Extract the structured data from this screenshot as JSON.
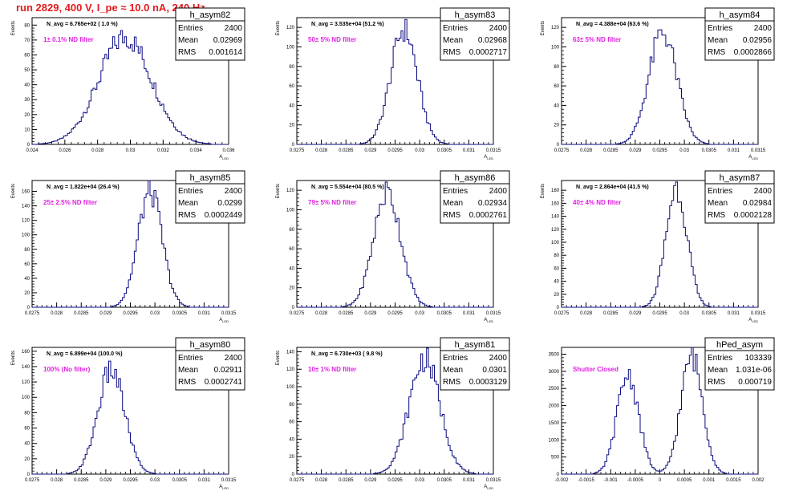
{
  "page": {
    "title": "run 2829,   400 V, I_pe ≈ 10.0 nA, 240 Hz"
  },
  "colors": {
    "histogram": "#0a0a80",
    "annotation": "#e020e0",
    "title": "#e41a1c",
    "axis": "#000000"
  },
  "chart_data": [
    {
      "type": "histogram",
      "name": "h_asym82",
      "stats": {
        "Entries": "2400",
        "Mean": "0.02969",
        "RMS": "0.001614"
      },
      "navg": "N_avg = 6.765e+02 ( 1.0 %)",
      "annotation": "1± 0.1% ND filter",
      "xlabel": "A_LED",
      "ylabel": "Events",
      "xlim": [
        0.024,
        0.036
      ],
      "ylim": [
        0,
        85
      ],
      "xticks": [
        "0.024",
        "0.026",
        "0.028",
        "0.03",
        "0.032",
        "0.034",
        "0.036"
      ],
      "yticks": [
        "0",
        "10",
        "20",
        "30",
        "40",
        "50",
        "60",
        "70",
        "80"
      ],
      "xtick_values": [
        0.024,
        0.026,
        0.028,
        0.03,
        0.032,
        0.034,
        0.036
      ],
      "ytick_values": [
        0,
        10,
        20,
        30,
        40,
        50,
        60,
        70,
        80
      ],
      "mean": 0.02969,
      "sigma": 0.001614,
      "peak": 72
    },
    {
      "type": "histogram",
      "name": "h_asym83",
      "stats": {
        "Entries": "2400",
        "Mean": "0.02968",
        "RMS": "0.0002717"
      },
      "navg": "N_avg = 3.535e+04 (51.2 %)",
      "annotation": "50± 5% ND filter",
      "xlabel": "A_LED",
      "ylabel": "Events",
      "xlim": [
        0.0275,
        0.0315
      ],
      "ylim": [
        0,
        130
      ],
      "xticks": [
        "0.0275",
        "0.028",
        "0.0285",
        "0.029",
        "0.0295",
        "0.03",
        "0.0305",
        "0.031",
        "0.0315"
      ],
      "yticks": [
        "0",
        "20",
        "40",
        "60",
        "80",
        "100",
        "120"
      ],
      "xtick_values": [
        0.0275,
        0.028,
        0.0285,
        0.029,
        0.0295,
        0.03,
        0.0305,
        0.031,
        0.0315
      ],
      "ytick_values": [
        0,
        20,
        40,
        60,
        80,
        100,
        120
      ],
      "mean": 0.02968,
      "sigma": 0.0002717,
      "peak": 118
    },
    {
      "type": "histogram",
      "name": "h_asym84",
      "stats": {
        "Entries": "2400",
        "Mean": "0.02956",
        "RMS": "0.0002866"
      },
      "navg": "N_avg = 4.388e+04 (63.6 %)",
      "annotation": "63± 5% ND filter",
      "xlabel": "A_LED",
      "ylabel": "Events",
      "xlim": [
        0.0275,
        0.0315
      ],
      "ylim": [
        0,
        130
      ],
      "xticks": [
        "0.0275",
        "0.028",
        "0.0285",
        "0.029",
        "0.0295",
        "0.03",
        "0.0305",
        "0.031",
        "0.0315"
      ],
      "yticks": [
        "0",
        "20",
        "40",
        "60",
        "80",
        "100",
        "120"
      ],
      "xtick_values": [
        0.0275,
        0.028,
        0.0285,
        0.029,
        0.0295,
        0.03,
        0.0305,
        0.031,
        0.0315
      ],
      "ytick_values": [
        0,
        20,
        40,
        60,
        80,
        100,
        120
      ],
      "mean": 0.02956,
      "sigma": 0.0002866,
      "peak": 115
    },
    {
      "type": "histogram",
      "name": "h_asym85",
      "stats": {
        "Entries": "2400",
        "Mean": "0.0299",
        "RMS": "0.0002449"
      },
      "navg": "N_avg = 1.822e+04 (26.4 %)",
      "annotation": "25± 2.5% ND filter",
      "xlabel": "A_LED",
      "ylabel": "Events",
      "xlim": [
        0.0275,
        0.0315
      ],
      "ylim": [
        0,
        175
      ],
      "xticks": [
        "0.0275",
        "0.028",
        "0.0285",
        "0.029",
        "0.0295",
        "0.03",
        "0.0305",
        "0.031",
        "0.0315"
      ],
      "yticks": [
        "0",
        "20",
        "40",
        "60",
        "80",
        "100",
        "120",
        "140",
        "160"
      ],
      "xtick_values": [
        0.0275,
        0.028,
        0.0285,
        0.029,
        0.0295,
        0.03,
        0.0305,
        0.031,
        0.0315
      ],
      "ytick_values": [
        0,
        20,
        40,
        60,
        80,
        100,
        120,
        140,
        160
      ],
      "mean": 0.0299,
      "sigma": 0.0002449,
      "peak": 160
    },
    {
      "type": "histogram",
      "name": "h_asym86",
      "stats": {
        "Entries": "2400",
        "Mean": "0.02934",
        "RMS": "0.0002761"
      },
      "navg": "N_avg = 5.554e+04 (80.5 %)",
      "annotation": "79± 5% ND filter",
      "xlabel": "A_LED",
      "ylabel": "Events",
      "xlim": [
        0.0275,
        0.0315
      ],
      "ylim": [
        0,
        130
      ],
      "xticks": [
        "0.0275",
        "0.028",
        "0.0285",
        "0.029",
        "0.0295",
        "0.03",
        "0.0305",
        "0.031",
        "0.0315"
      ],
      "yticks": [
        "0",
        "20",
        "40",
        "60",
        "80",
        "100",
        "120"
      ],
      "xtick_values": [
        0.0275,
        0.028,
        0.0285,
        0.029,
        0.0295,
        0.03,
        0.0305,
        0.031,
        0.0315
      ],
      "ytick_values": [
        0,
        20,
        40,
        60,
        80,
        100,
        120
      ],
      "mean": 0.02934,
      "sigma": 0.0002761,
      "peak": 118
    },
    {
      "type": "histogram",
      "name": "h_asym87",
      "stats": {
        "Entries": "2400",
        "Mean": "0.02984",
        "RMS": "0.0002128"
      },
      "navg": "N_avg = 2.864e+04 (41.5 %)",
      "annotation": "40± 4% ND filter",
      "xlabel": "A_LED",
      "ylabel": "Events",
      "xlim": [
        0.0275,
        0.0315
      ],
      "ylim": [
        0,
        195
      ],
      "xticks": [
        "0.0275",
        "0.028",
        "0.0285",
        "0.029",
        "0.0295",
        "0.03",
        "0.0305",
        "0.031",
        "0.0315"
      ],
      "yticks": [
        "0",
        "20",
        "40",
        "60",
        "80",
        "100",
        "120",
        "140",
        "160",
        "180"
      ],
      "xtick_values": [
        0.0275,
        0.028,
        0.0285,
        0.029,
        0.0295,
        0.03,
        0.0305,
        0.031,
        0.0315
      ],
      "ytick_values": [
        0,
        20,
        40,
        60,
        80,
        100,
        120,
        140,
        160,
        180
      ],
      "mean": 0.02984,
      "sigma": 0.0002128,
      "peak": 185
    },
    {
      "type": "histogram",
      "name": "h_asym80",
      "stats": {
        "Entries": "2400",
        "Mean": "0.02911",
        "RMS": "0.0002741"
      },
      "navg": "N_avg = 6.899e+04 (100.0 %)",
      "annotation": "100% (No filter)",
      "xlabel": "A_LED",
      "ylabel": "Events",
      "xlim": [
        0.0275,
        0.0315
      ],
      "ylim": [
        0,
        165
      ],
      "xticks": [
        "0.0275",
        "0.028",
        "0.0285",
        "0.029",
        "0.0295",
        "0.03",
        "0.0305",
        "0.031",
        "0.0315"
      ],
      "yticks": [
        "0",
        "20",
        "40",
        "60",
        "80",
        "100",
        "120",
        "140",
        "160"
      ],
      "xtick_values": [
        0.0275,
        0.028,
        0.0285,
        0.029,
        0.0295,
        0.03,
        0.0305,
        0.031,
        0.0315
      ],
      "ytick_values": [
        0,
        20,
        40,
        60,
        80,
        100,
        120,
        140,
        160
      ],
      "mean": 0.02911,
      "sigma": 0.0002741,
      "peak": 135
    },
    {
      "type": "histogram",
      "name": "h_asym81",
      "stats": {
        "Entries": "2400",
        "Mean": "0.0301",
        "RMS": "0.0003129"
      },
      "navg": "N_avg = 6.730e+03 ( 9.8 %)",
      "annotation": "10± 1% ND filter",
      "xlabel": "A_LED",
      "ylabel": "Events",
      "xlim": [
        0.0275,
        0.0315
      ],
      "ylim": [
        0,
        145
      ],
      "xticks": [
        "0.0275",
        "0.028",
        "0.0285",
        "0.029",
        "0.0295",
        "0.03",
        "0.0305",
        "0.031",
        "0.0315"
      ],
      "yticks": [
        "0",
        "20",
        "40",
        "60",
        "80",
        "100",
        "120",
        "140"
      ],
      "xtick_values": [
        0.0275,
        0.028,
        0.0285,
        0.029,
        0.0295,
        0.03,
        0.0305,
        0.031,
        0.0315
      ],
      "ytick_values": [
        0,
        20,
        40,
        60,
        80,
        100,
        120,
        140
      ],
      "mean": 0.0301,
      "sigma": 0.0003129,
      "peak": 132
    },
    {
      "type": "histogram",
      "name": "hPed_asym",
      "stats": {
        "Entries": "103339",
        "Mean": "1.031e-06",
        "RMS": "0.000719"
      },
      "navg": "",
      "annotation": "Shutter Closed",
      "xlabel": "",
      "ylabel": "",
      "xlim": [
        -0.002,
        0.002
      ],
      "ylim": [
        0,
        3700
      ],
      "xticks": [
        "-0.002",
        "-0.0015",
        "-0.001",
        "-0.0005",
        "0",
        "0.0005",
        "0.001",
        "0.0015",
        "0.002"
      ],
      "yticks": [
        "0",
        "500",
        "1000",
        "1500",
        "2000",
        "2500",
        "3000",
        "3500"
      ],
      "xtick_values": [
        -0.002,
        -0.0015,
        -0.001,
        -0.0005,
        0,
        0.0005,
        0.001,
        0.0015,
        0.002
      ],
      "ytick_values": [
        0,
        500,
        1000,
        1500,
        2000,
        2500,
        3000,
        3500
      ],
      "peaks": [
        {
          "mean": -0.00065,
          "sigma": 0.00022,
          "peak": 2900
        },
        {
          "mean": 0.00065,
          "sigma": 0.00022,
          "peak": 3450
        }
      ],
      "baseline": 600
    }
  ]
}
